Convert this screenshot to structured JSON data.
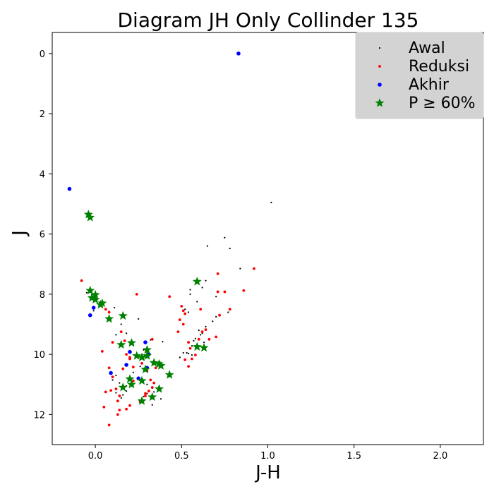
{
  "chart_data": {
    "type": "scatter",
    "title": "Diagram JH Only Collinder 135",
    "xlabel": "J-H",
    "ylabel": "J",
    "xlim": [
      -0.25,
      2.25
    ],
    "ylim": [
      13.0,
      -0.7
    ],
    "y_inverted": true,
    "x_ticks": [
      "0.0",
      "0.5",
      "1.0",
      "1.5",
      "2.0"
    ],
    "x_tick_values": [
      0.0,
      0.5,
      1.0,
      1.5,
      2.0
    ],
    "y_ticks": [
      "0",
      "2",
      "4",
      "6",
      "8",
      "10",
      "12"
    ],
    "y_tick_values": [
      0,
      2,
      4,
      6,
      8,
      10,
      12
    ],
    "grid": false,
    "legend_position": "top-right",
    "series": [
      {
        "name": "Awal",
        "marker": "dot-small",
        "color": "#000000",
        "points": [
          [
            1.02,
            4.95
          ],
          [
            0.75,
            6.12
          ],
          [
            0.78,
            6.48
          ],
          [
            0.65,
            6.4
          ],
          [
            0.84,
            7.15
          ],
          [
            -0.05,
            7.95
          ],
          [
            -0.02,
            8.02
          ],
          [
            0.02,
            8.35
          ],
          [
            0.11,
            8.45
          ],
          [
            -0.01,
            8.55
          ],
          [
            0.25,
            8.82
          ],
          [
            0.15,
            9.0
          ],
          [
            0.18,
            9.3
          ],
          [
            0.12,
            9.35
          ],
          [
            0.32,
            9.52
          ],
          [
            0.39,
            9.58
          ],
          [
            0.15,
            9.65
          ],
          [
            0.22,
            9.7
          ],
          [
            0.28,
            9.85
          ],
          [
            0.3,
            9.95
          ],
          [
            0.25,
            10.05
          ],
          [
            0.34,
            10.25
          ],
          [
            0.38,
            10.42
          ],
          [
            0.26,
            10.4
          ],
          [
            0.22,
            10.6
          ],
          [
            0.12,
            10.7
          ],
          [
            0.1,
            10.85
          ],
          [
            0.14,
            10.95
          ],
          [
            0.18,
            11.05
          ],
          [
            0.3,
            11.0
          ],
          [
            0.33,
            11.12
          ],
          [
            0.34,
            11.25
          ],
          [
            0.18,
            11.22
          ],
          [
            0.12,
            11.28
          ],
          [
            0.16,
            11.35
          ],
          [
            0.28,
            11.4
          ],
          [
            0.38,
            11.48
          ],
          [
            0.15,
            11.45
          ],
          [
            0.33,
            11.68
          ],
          [
            0.3,
            11.3
          ],
          [
            0.55,
            7.85
          ],
          [
            0.55,
            8.0
          ],
          [
            0.59,
            8.25
          ],
          [
            0.62,
            7.78
          ],
          [
            0.64,
            7.55
          ],
          [
            0.7,
            8.08
          ],
          [
            0.77,
            8.6
          ],
          [
            0.7,
            8.75
          ],
          [
            0.68,
            8.9
          ],
          [
            0.64,
            9.08
          ],
          [
            0.6,
            9.2
          ],
          [
            0.61,
            9.35
          ],
          [
            0.57,
            9.55
          ],
          [
            0.56,
            9.72
          ],
          [
            0.53,
            9.95
          ],
          [
            0.51,
            9.95
          ],
          [
            0.54,
            9.97
          ],
          [
            0.56,
            10.02
          ],
          [
            0.51,
            8.55
          ],
          [
            0.54,
            8.6
          ],
          [
            0.52,
            8.5
          ],
          [
            0.62,
            9.3
          ],
          [
            0.63,
            9.6
          ],
          [
            0.58,
            9.48
          ],
          [
            0.49,
            10.1
          ]
        ]
      },
      {
        "name": "Reduksi",
        "marker": "dot-medium",
        "color": "#ff0000",
        "points": [
          [
            -0.08,
            7.55
          ],
          [
            0.92,
            7.15
          ],
          [
            0.71,
            7.32
          ],
          [
            0.86,
            7.88
          ],
          [
            0.75,
            7.92
          ],
          [
            0.71,
            7.92
          ],
          [
            0.43,
            8.08
          ],
          [
            0.24,
            8.0
          ],
          [
            0.06,
            8.5
          ],
          [
            0.08,
            8.6
          ],
          [
            0.1,
            9.6
          ],
          [
            0.15,
            9.25
          ],
          [
            0.17,
            9.55
          ],
          [
            0.04,
            9.9
          ],
          [
            0.18,
            10.0
          ],
          [
            0.2,
            10.1
          ],
          [
            0.08,
            10.45
          ],
          [
            0.16,
            10.48
          ],
          [
            0.22,
            10.42
          ],
          [
            0.1,
            10.75
          ],
          [
            0.06,
            11.25
          ],
          [
            0.09,
            11.2
          ],
          [
            0.12,
            11.15
          ],
          [
            0.14,
            11.38
          ],
          [
            0.13,
            11.55
          ],
          [
            0.05,
            11.75
          ],
          [
            0.14,
            11.85
          ],
          [
            0.13,
            12.0
          ],
          [
            0.18,
            11.82
          ],
          [
            0.2,
            11.7
          ],
          [
            0.08,
            12.35
          ],
          [
            0.26,
            11.58
          ],
          [
            0.29,
            11.3
          ],
          [
            0.31,
            11.22
          ],
          [
            0.32,
            10.85
          ],
          [
            0.3,
            10.55
          ],
          [
            0.34,
            10.95
          ],
          [
            0.33,
            9.5
          ],
          [
            0.35,
            10.45
          ],
          [
            0.27,
            10.3
          ],
          [
            0.48,
            9.25
          ],
          [
            0.5,
            8.4
          ],
          [
            0.51,
            8.55
          ],
          [
            0.52,
            8.65
          ],
          [
            0.49,
            8.85
          ],
          [
            0.51,
            9.0
          ],
          [
            0.54,
            9.6
          ],
          [
            0.55,
            9.8
          ],
          [
            0.52,
            10.18
          ],
          [
            0.56,
            10.15
          ],
          [
            0.58,
            10.02
          ],
          [
            0.59,
            9.75
          ],
          [
            0.6,
            9.5
          ],
          [
            0.62,
            9.25
          ],
          [
            0.64,
            9.18
          ],
          [
            0.66,
            9.5
          ],
          [
            0.7,
            9.42
          ],
          [
            0.72,
            8.7
          ],
          [
            0.78,
            8.5
          ],
          [
            0.61,
            8.5
          ],
          [
            0.54,
            10.4
          ],
          [
            0.29,
            11.38
          ],
          [
            0.33,
            11.1
          ],
          [
            0.2,
            10.15
          ],
          [
            0.22,
            10.88
          ]
        ]
      },
      {
        "name": "Akhir",
        "marker": "dot-large",
        "color": "#0000ff",
        "points": [
          [
            0.83,
            0.0
          ],
          [
            -0.15,
            4.5
          ],
          [
            -0.01,
            8.45
          ],
          [
            -0.03,
            8.7
          ],
          [
            0.29,
            9.6
          ],
          [
            0.2,
            9.92
          ],
          [
            0.31,
            10.0
          ],
          [
            0.18,
            10.35
          ],
          [
            0.3,
            10.45
          ],
          [
            0.09,
            10.62
          ],
          [
            0.25,
            10.8
          ]
        ]
      },
      {
        "name": "P ≥ 60%",
        "marker": "star",
        "color": "#008000",
        "points": [
          [
            -0.04,
            5.35
          ],
          [
            -0.03,
            5.45
          ],
          [
            -0.03,
            7.88
          ],
          [
            0.0,
            8.02
          ],
          [
            -0.02,
            8.12
          ],
          [
            0.0,
            8.18
          ],
          [
            0.04,
            8.3
          ],
          [
            0.03,
            8.35
          ],
          [
            0.16,
            8.72
          ],
          [
            0.08,
            8.82
          ],
          [
            0.59,
            7.58
          ],
          [
            0.15,
            9.68
          ],
          [
            0.21,
            9.62
          ],
          [
            0.3,
            9.85
          ],
          [
            0.24,
            10.05
          ],
          [
            0.27,
            10.1
          ],
          [
            0.3,
            10.05
          ],
          [
            0.34,
            10.28
          ],
          [
            0.37,
            10.32
          ],
          [
            0.38,
            10.38
          ],
          [
            0.29,
            10.5
          ],
          [
            0.43,
            10.68
          ],
          [
            0.2,
            10.82
          ],
          [
            0.27,
            10.88
          ],
          [
            0.21,
            11.0
          ],
          [
            0.16,
            11.1
          ],
          [
            0.37,
            11.15
          ],
          [
            0.33,
            11.42
          ],
          [
            0.27,
            11.55
          ],
          [
            0.59,
            9.75
          ],
          [
            0.63,
            9.78
          ]
        ]
      }
    ]
  }
}
